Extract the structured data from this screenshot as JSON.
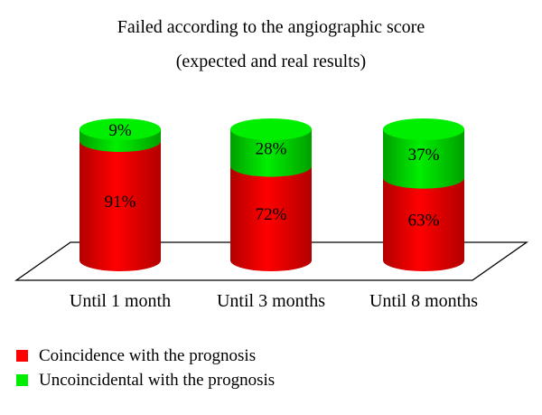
{
  "chart_data": {
    "type": "bar",
    "stacked": true,
    "percent_stacked": true,
    "style": "3d-cylinder",
    "title": [
      "Failed according to the angiographic score",
      "(expected and real results)"
    ],
    "categories": [
      "Until 1 month",
      "Until 3 months",
      "Until 8 months"
    ],
    "series": [
      {
        "name": "Coincidence with the prognosis",
        "values": [
          91,
          72,
          63
        ],
        "labels": [
          "91%",
          "72%",
          "63%"
        ],
        "color": "#ff0000",
        "shade": "#b30000"
      },
      {
        "name": "Uncoincidental with the prognosis",
        "values": [
          9,
          28,
          37
        ],
        "labels": [
          "9%",
          "28%",
          "37%"
        ],
        "color": "#00ee00",
        "shade": "#00a000"
      }
    ],
    "ylim": [
      0,
      100
    ],
    "grid": false,
    "legend": "bottom-left"
  }
}
